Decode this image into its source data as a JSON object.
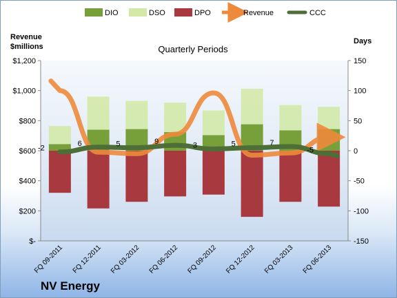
{
  "chart_data": {
    "type": "bar",
    "company": "NV Energy",
    "title": "Quarterly Periods",
    "y_left_label_line1": "Revenue",
    "y_left_label_line2": "$millions",
    "y_right_label": "Days",
    "categories": [
      "FQ 09-2011",
      "FQ 12-2011",
      "FQ 03-2012",
      "FQ 06-2012",
      "FQ 09-2012",
      "FQ 12-2012",
      "FQ 03-2013",
      "FQ 06-2013"
    ],
    "y_left_ticks": [
      "$-",
      "$200",
      "$400",
      "$600",
      "$800",
      "$1,000",
      "$1,200"
    ],
    "y_left_lim": [
      0,
      1200
    ],
    "y_right_ticks": [
      -150,
      -100,
      -50,
      0,
      50,
      100,
      150
    ],
    "y_right_lim": [
      -150,
      150
    ],
    "series": [
      {
        "name": "DIO",
        "axis": "right",
        "color": "#77a03a",
        "values": [
          11,
          35,
          36,
          31,
          26,
          44,
          34,
          36
        ]
      },
      {
        "name": "DSO",
        "axis": "right",
        "color": "#d3e9a8",
        "values": [
          30,
          55,
          47,
          49,
          41,
          59,
          42,
          37
        ]
      },
      {
        "name": "DPO",
        "axis": "right",
        "color": "#a83a3f",
        "values": [
          -70,
          -96,
          -85,
          -76,
          -73,
          -110,
          -85,
          -93
        ]
      },
      {
        "name": "Revenue",
        "axis": "left",
        "type": "line",
        "color": "#ee8a3c",
        "values": [
          1000,
          590,
          580,
          710,
          985,
          570,
          585,
          690
        ]
      },
      {
        "name": "CCC",
        "axis": "right",
        "type": "line",
        "color": "#4e6e38",
        "values": [
          -2,
          6,
          5,
          9,
          3,
          5,
          7,
          -5
        ]
      }
    ],
    "ccc_labels": [
      "-2",
      "6",
      "5",
      "9",
      "3",
      "5",
      "7",
      "-5"
    ],
    "grid": false,
    "legend_position": "top"
  },
  "colors": {
    "plot_bg": "#ffffff",
    "frame_border": "#7f9db9"
  }
}
